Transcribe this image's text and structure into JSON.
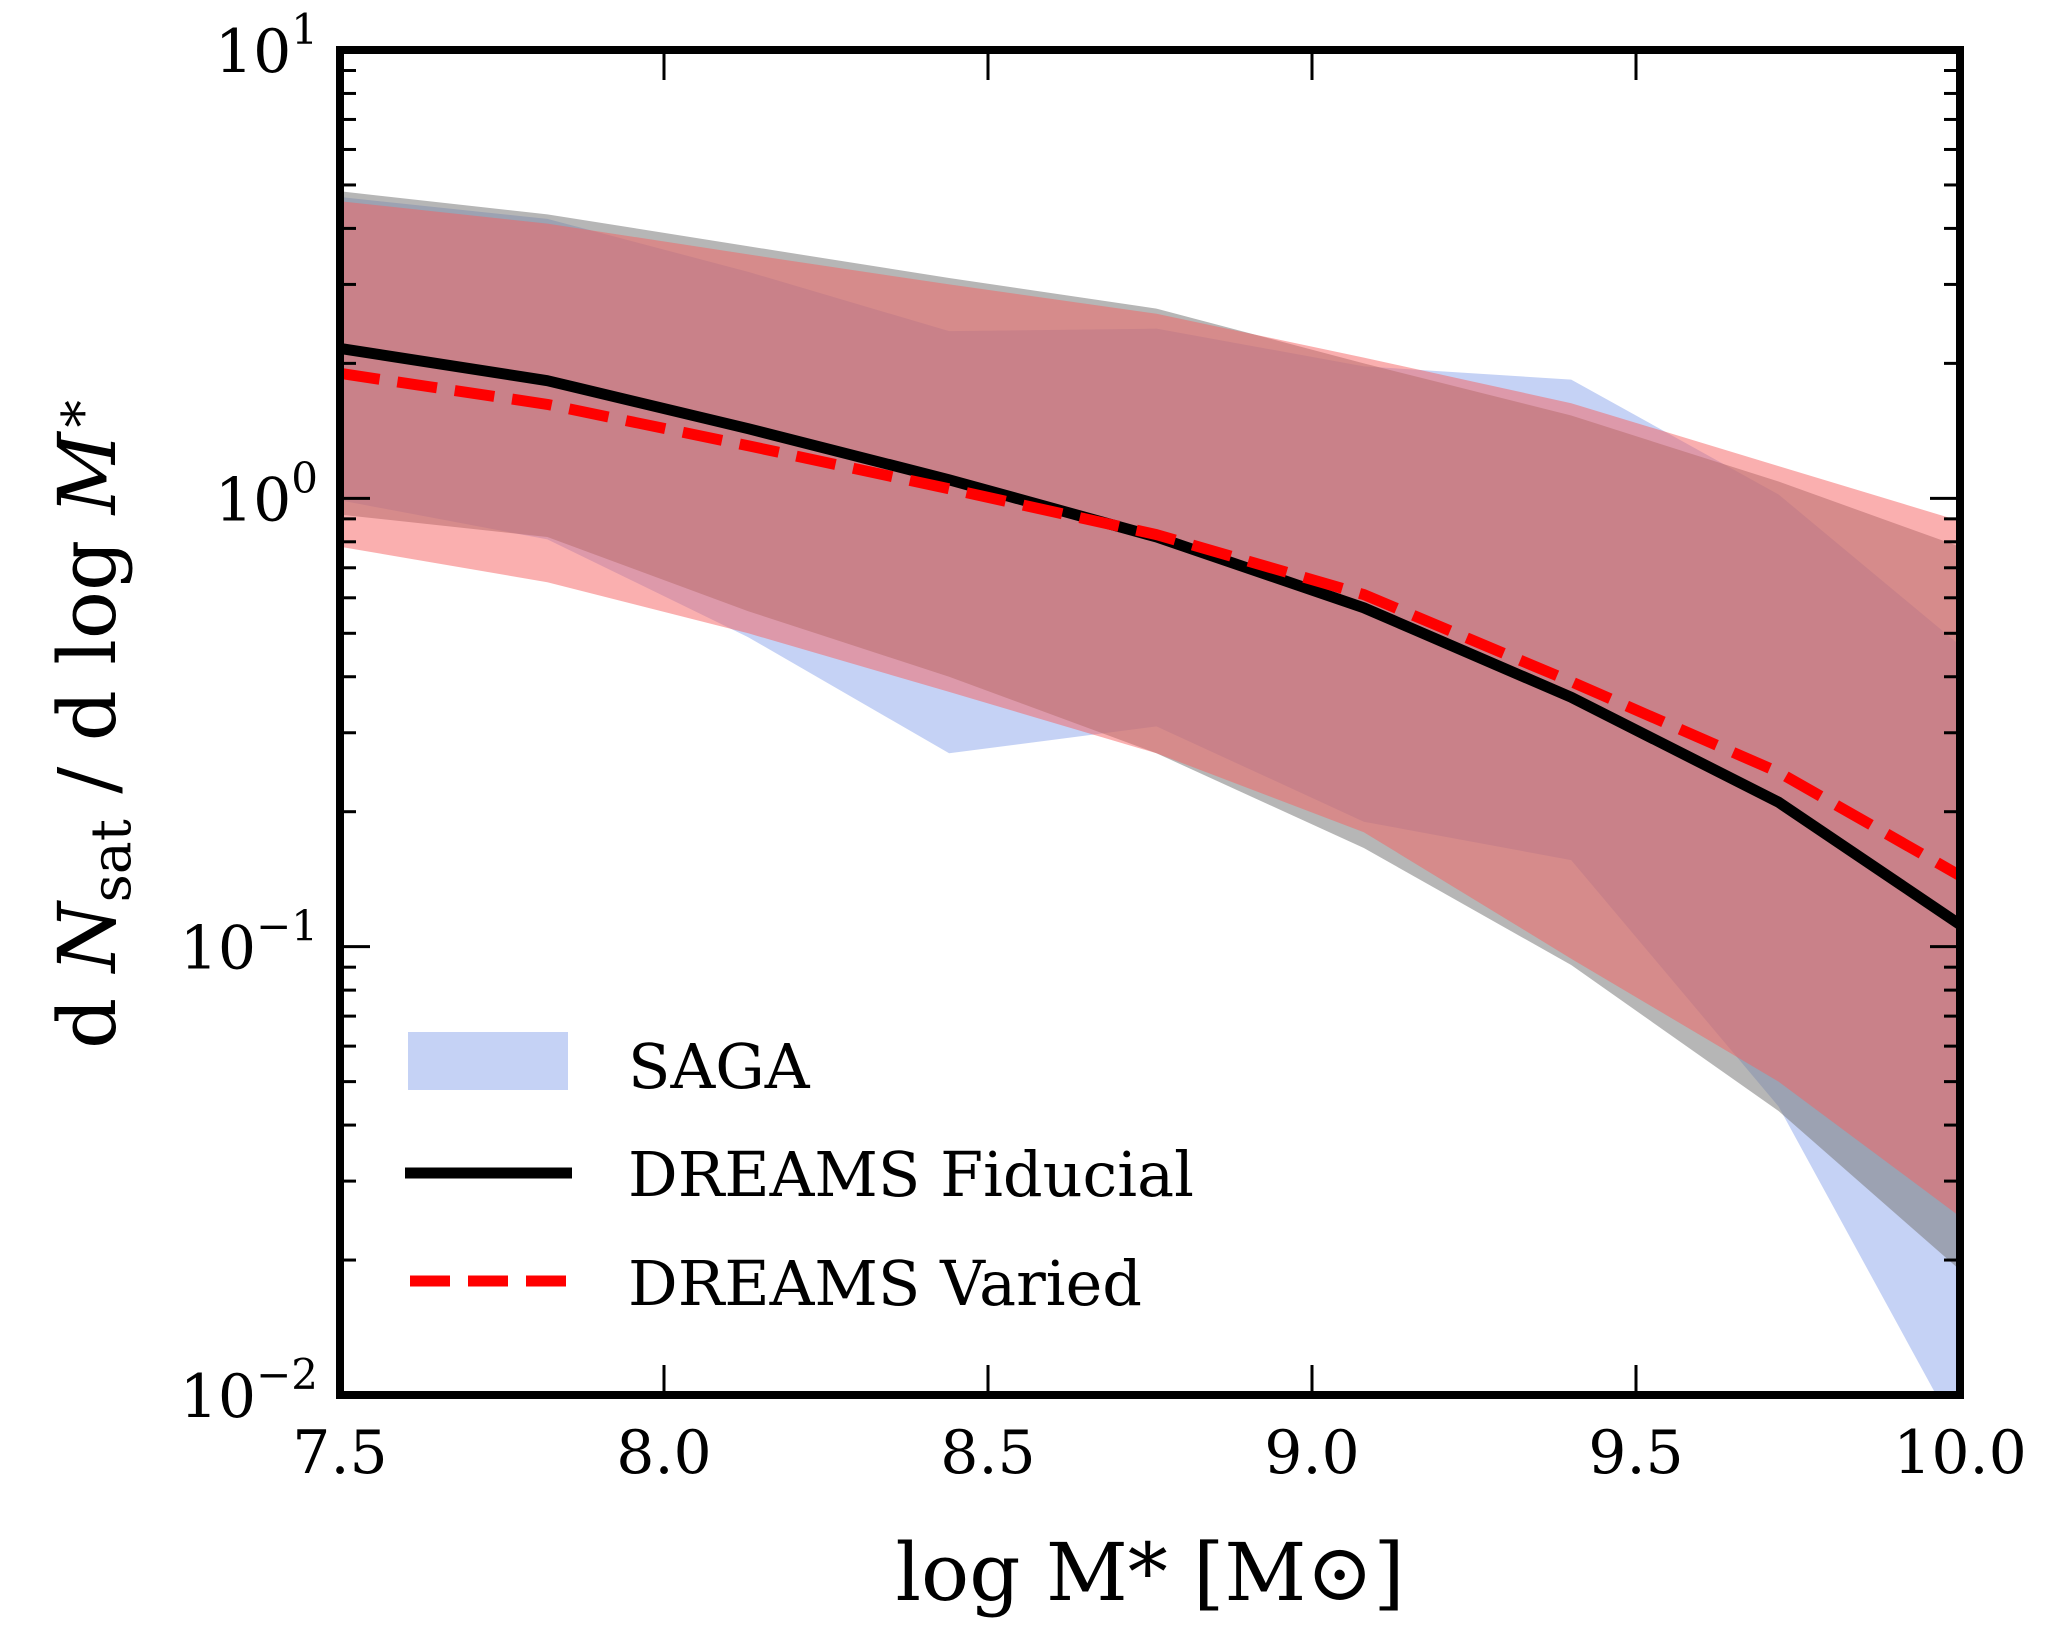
{
  "chart_data": {
    "type": "line",
    "xlabel": "log M* [M⊙]",
    "ylabel": "d N_sat / d log M*",
    "xlim": [
      7.5,
      10.0
    ],
    "ylim": [
      0.01,
      10
    ],
    "yscale": "log",
    "grid": false,
    "legend_position": "bottom-left",
    "x_ticks": [
      "7.5",
      "8.0",
      "8.5",
      "9.0",
      "9.5",
      "10.0"
    ],
    "y_ticks": [
      {
        "base": "10",
        "exp": "−2"
      },
      {
        "base": "10",
        "exp": "−1"
      },
      {
        "base": "10",
        "exp": "0"
      },
      {
        "base": "10",
        "exp": "1"
      }
    ],
    "x": [
      7.5,
      7.82,
      8.13,
      8.44,
      8.76,
      9.08,
      9.4,
      9.72,
      10.0
    ],
    "bands": [
      {
        "name": "SAGA",
        "color": "#6f8fe6",
        "opacity": 0.4,
        "upper": [
          4.7,
          4.2,
          3.2,
          2.36,
          2.39,
          1.97,
          1.84,
          1.02,
          0.47
        ],
        "lower": [
          0.99,
          0.81,
          0.49,
          0.27,
          0.31,
          0.19,
          0.156,
          0.044,
          0.008
        ]
      },
      {
        "color": "#7a7a7a",
        "opacity": 0.55,
        "upper": [
          4.84,
          4.3,
          3.65,
          3.1,
          2.65,
          2.0,
          1.53,
          1.09,
          0.78
        ],
        "lower": [
          0.92,
          0.82,
          0.56,
          0.4,
          0.27,
          0.166,
          0.091,
          0.043,
          0.019
        ]
      },
      {
        "color": "#f56060",
        "opacity": 0.5,
        "upper": [
          4.6,
          4.1,
          3.5,
          3.0,
          2.58,
          2.06,
          1.63,
          1.18,
          0.89
        ],
        "lower": [
          0.78,
          0.65,
          0.5,
          0.37,
          0.27,
          0.18,
          0.094,
          0.05,
          0.025
        ]
      }
    ],
    "series": [
      {
        "name": "DREAMS Fiducial",
        "color": "#000000",
        "style": "solid",
        "values": [
          2.16,
          1.83,
          1.43,
          1.1,
          0.82,
          0.57,
          0.36,
          0.21,
          0.112
        ]
      },
      {
        "name": "DREAMS Varied",
        "color": "#ff0000",
        "style": "dashed",
        "values": [
          1.9,
          1.62,
          1.31,
          1.05,
          0.83,
          0.61,
          0.39,
          0.245,
          0.144
        ]
      }
    ],
    "legend": [
      "SAGA",
      "DREAMS Fiducial",
      "DREAMS Varied"
    ]
  }
}
